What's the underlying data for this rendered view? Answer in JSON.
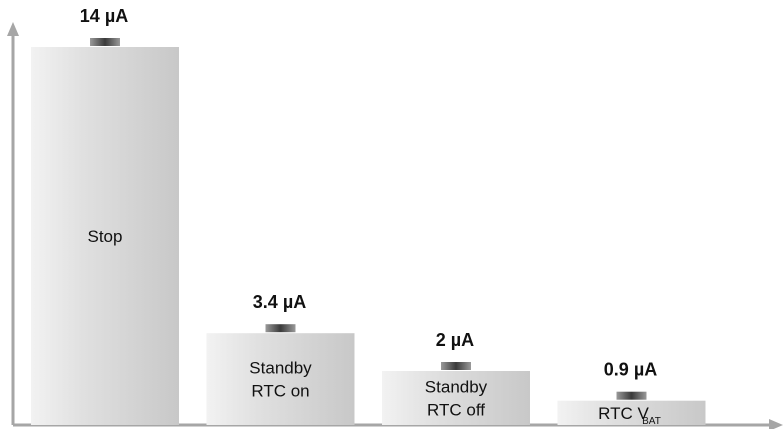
{
  "chart_data": {
    "type": "bar",
    "title": "",
    "xlabel": "",
    "ylabel": "",
    "grid": false,
    "legend": "none",
    "ylim": [
      0,
      14
    ],
    "categories": [
      {
        "lines": [
          "Stop"
        ]
      },
      {
        "lines": [
          "Standby",
          "RTC on"
        ]
      },
      {
        "lines": [
          "Standby",
          "RTC off"
        ]
      },
      {
        "lines": [
          "RTC V"
        ],
        "subscript": "BAT"
      }
    ],
    "values": [
      14,
      3.4,
      2,
      0.9
    ],
    "value_labels": [
      "14 µA",
      "3.4 µA",
      "2 µA",
      "0.9 µA"
    ],
    "unit": "µA"
  },
  "colors": {
    "axis": "#a6a6a6",
    "bar_light": "#f2f2f2",
    "bar_mid": "#e0e0e0",
    "bar_dark": "#c8c8c8",
    "cap_dark": "#3a3a3a",
    "cap_light": "#9a9a9a"
  }
}
